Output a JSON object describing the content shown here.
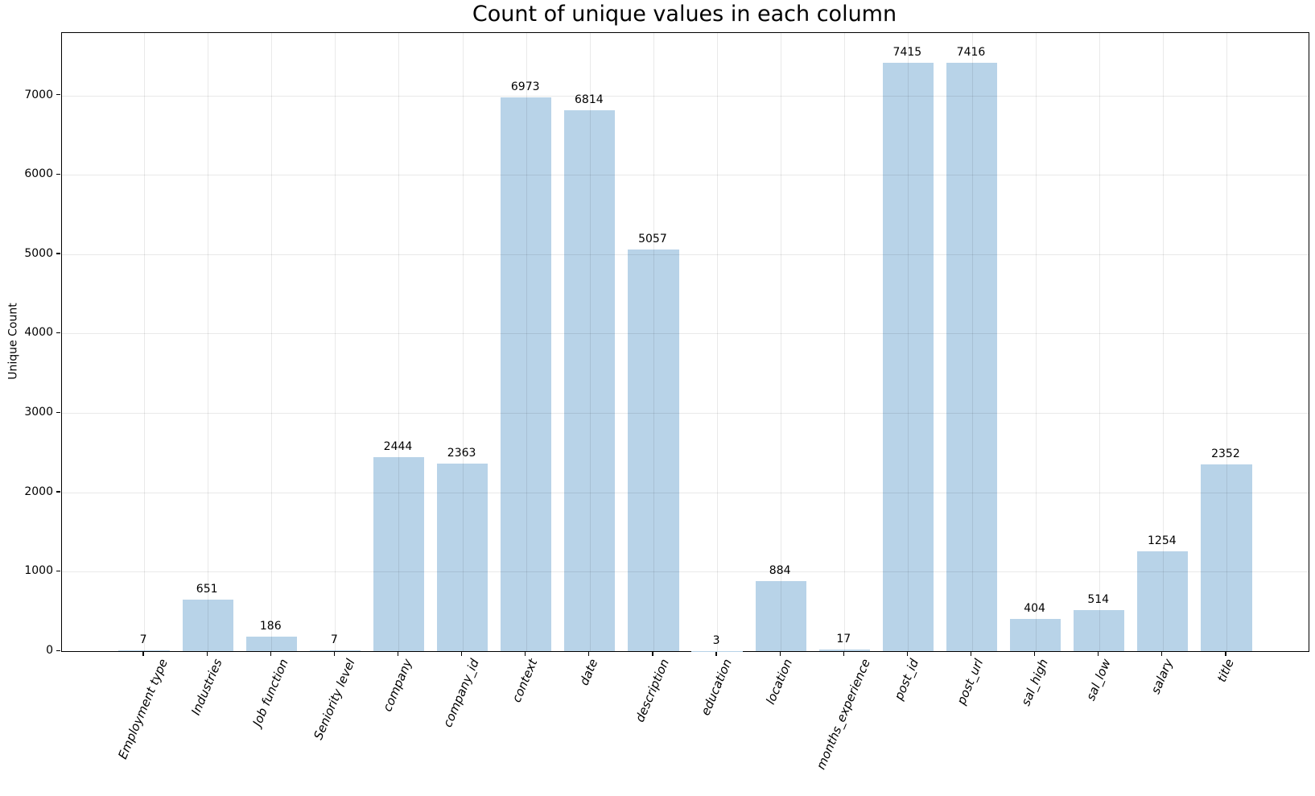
{
  "chart_data": {
    "type": "bar",
    "title": "Count of unique values in each column",
    "xlabel": "",
    "ylabel": "Unique Count",
    "categories": [
      "Employment type",
      "Industries",
      "Job function",
      "Seniority level",
      "company",
      "company_id",
      "context",
      "date",
      "description",
      "education",
      "location",
      "months_experience",
      "post_id",
      "post_url",
      "sal_high",
      "sal_low",
      "salary",
      "title"
    ],
    "values": [
      7,
      651,
      186,
      7,
      2444,
      2363,
      6973,
      6814,
      5057,
      3,
      884,
      17,
      7415,
      7416,
      404,
      514,
      1254,
      2352
    ],
    "value_labels_shown": true,
    "ylim": [
      0,
      7787
    ],
    "yticks": [
      0,
      1000,
      2000,
      3000,
      4000,
      5000,
      6000,
      7000
    ],
    "grid": true,
    "legend": "none",
    "bar_color": "#b8d3e8",
    "xtick_rotation_deg": 67,
    "xtick_font_style": "italic"
  }
}
